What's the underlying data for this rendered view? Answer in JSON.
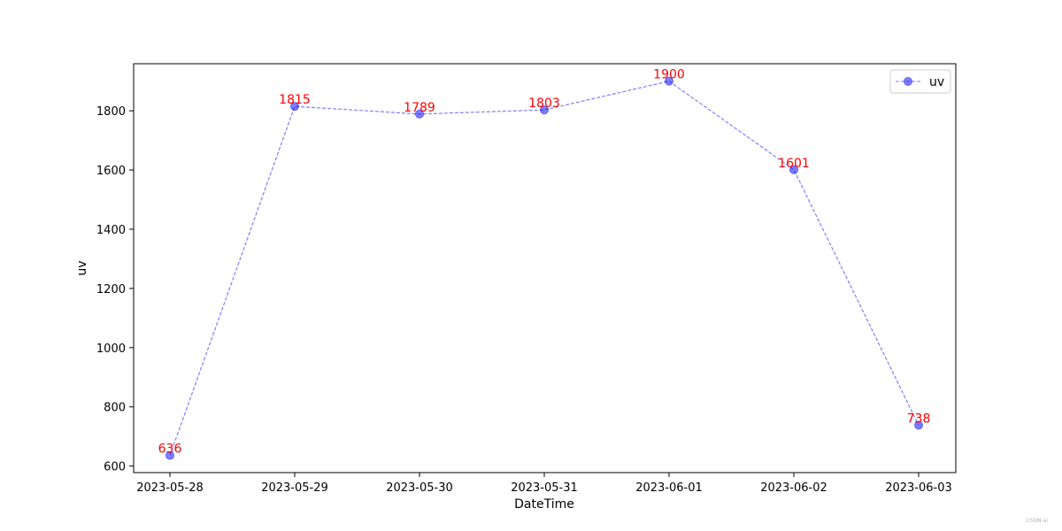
{
  "chart_data": {
    "type": "line",
    "xlabel": "DateTime",
    "ylabel": "uv",
    "categories": [
      "2023-05-28",
      "2023-05-29",
      "2023-05-30",
      "2023-05-31",
      "2023-06-01",
      "2023-06-02",
      "2023-06-03"
    ],
    "series": [
      {
        "name": "uv",
        "values": [
          636,
          1815,
          1789,
          1803,
          1900,
          1601,
          738
        ]
      }
    ],
    "yticks": [
      600,
      800,
      1000,
      1200,
      1400,
      1600,
      1800
    ],
    "ylim": [
      578,
      1959
    ],
    "grid": false,
    "legend": "top-right",
    "colors": {
      "line": "#0000ff",
      "marker": "#0000ff",
      "label": "#ff0000"
    },
    "line_style": "dashed",
    "marker": "circle"
  },
  "watermark": "CSDN-ai"
}
